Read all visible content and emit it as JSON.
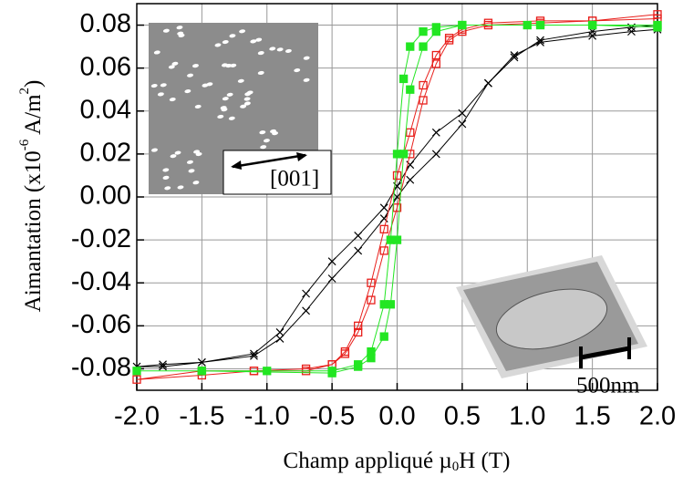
{
  "chart_data": {
    "type": "line",
    "y_label_parts": [
      "Aimantation (x10",
      "-6",
      " A/m",
      "2",
      ")"
    ],
    "x_label_parts": [
      "Champ appliqué µ",
      "0",
      "H (T)"
    ],
    "annotations": [
      "[001]",
      "500nm"
    ],
    "xlim": [
      -2,
      2
    ],
    "ylim": [
      -0.09,
      0.09
    ],
    "xticks": [
      {
        "value": -2,
        "label": "-2.0"
      },
      {
        "value": -1.5,
        "label": "-1.5"
      },
      {
        "value": -1,
        "label": "-1.0"
      },
      {
        "value": -0.5,
        "label": "-0.5"
      },
      {
        "value": 0,
        "label": "0.0"
      },
      {
        "value": 0.5,
        "label": "0.5"
      },
      {
        "value": 1,
        "label": "1.0"
      },
      {
        "value": 1.5,
        "label": "1.5"
      },
      {
        "value": 2,
        "label": "2.0"
      }
    ],
    "yticks": [
      -0.08,
      -0.06,
      -0.04,
      -0.02,
      {
        "value": 0,
        "label": "0.00"
      },
      0.02,
      0.04,
      0.06,
      0.08
    ],
    "grid": true,
    "series": [
      {
        "color": "#000000",
        "marker": "x",
        "x": [
          2,
          1.8,
          1.5,
          1.1,
          0.9,
          0.7,
          0.5,
          0.3,
          0.1,
          0,
          -0.1,
          -0.3,
          -0.5,
          -0.7,
          -0.9,
          -1.1,
          -1.5,
          -1.8,
          -2,
          -1.8,
          -1.5,
          -1.1,
          -0.9,
          -0.7,
          -0.5,
          -0.3,
          -0.1,
          0,
          0.1,
          0.3,
          0.5,
          0.7,
          0.9,
          1.1,
          1.5,
          1.8,
          2
        ],
        "values": [
          0.078,
          0.077,
          0.075,
          0.072,
          0.066,
          0.053,
          0.039,
          0.03,
          0.015,
          0.005,
          -0.005,
          -0.018,
          -0.03,
          -0.045,
          -0.063,
          -0.073,
          -0.077,
          -0.078,
          -0.079,
          -0.079,
          -0.077,
          -0.074,
          -0.066,
          -0.053,
          -0.038,
          -0.025,
          -0.01,
          0,
          0.008,
          0.02,
          0.034,
          0.053,
          0.065,
          0.073,
          0.077,
          0.079,
          0.08
        ]
      },
      {
        "color": "#e8201c",
        "marker": "open-square",
        "x": [
          2,
          1.5,
          1.1,
          0.7,
          0.5,
          0.4,
          0.3,
          0.2,
          0.1,
          0,
          -0.1,
          -0.2,
          -0.3,
          -0.4,
          -0.5,
          -0.7,
          -1.1,
          -1.5,
          -2,
          -1.5,
          -1.1,
          -0.7,
          -0.5,
          -0.4,
          -0.3,
          -0.2,
          -0.1,
          0,
          0.1,
          0.2,
          0.3,
          0.4,
          0.5,
          0.7,
          1.1,
          1.5,
          2
        ],
        "values": [
          0.083,
          0.082,
          0.082,
          0.081,
          0.078,
          0.074,
          0.066,
          0.052,
          0.03,
          0.01,
          -0.015,
          -0.04,
          -0.06,
          -0.072,
          -0.078,
          -0.08,
          -0.081,
          -0.081,
          -0.085,
          -0.083,
          -0.081,
          -0.081,
          -0.078,
          -0.073,
          -0.063,
          -0.048,
          -0.025,
          -0.005,
          0.02,
          0.045,
          0.062,
          0.073,
          0.077,
          0.08,
          0.081,
          0.082,
          0.085
        ]
      },
      {
        "color": "#22e622",
        "marker": "filled-square",
        "x": [
          2,
          1.5,
          1.1,
          0.5,
          0.3,
          0.2,
          0.1,
          0.05,
          0,
          -0.05,
          -0.1,
          -0.2,
          -0.3,
          -0.5,
          -1,
          -1.5,
          -2,
          -1.5,
          -0.5,
          -0.3,
          -0.2,
          -0.1,
          -0.05,
          0,
          0.05,
          0.1,
          0.2,
          0.3,
          0.5,
          1,
          1.5,
          2
        ],
        "values": [
          0.079,
          0.08,
          0.08,
          0.08,
          0.079,
          0.077,
          0.07,
          0.055,
          0.02,
          -0.02,
          -0.05,
          -0.072,
          -0.078,
          -0.081,
          -0.081,
          -0.081,
          -0.081,
          -0.081,
          -0.082,
          -0.079,
          -0.075,
          -0.065,
          -0.05,
          -0.02,
          0.02,
          0.05,
          0.07,
          0.077,
          0.08,
          0.08,
          0.08,
          0.08
        ]
      }
    ]
  }
}
